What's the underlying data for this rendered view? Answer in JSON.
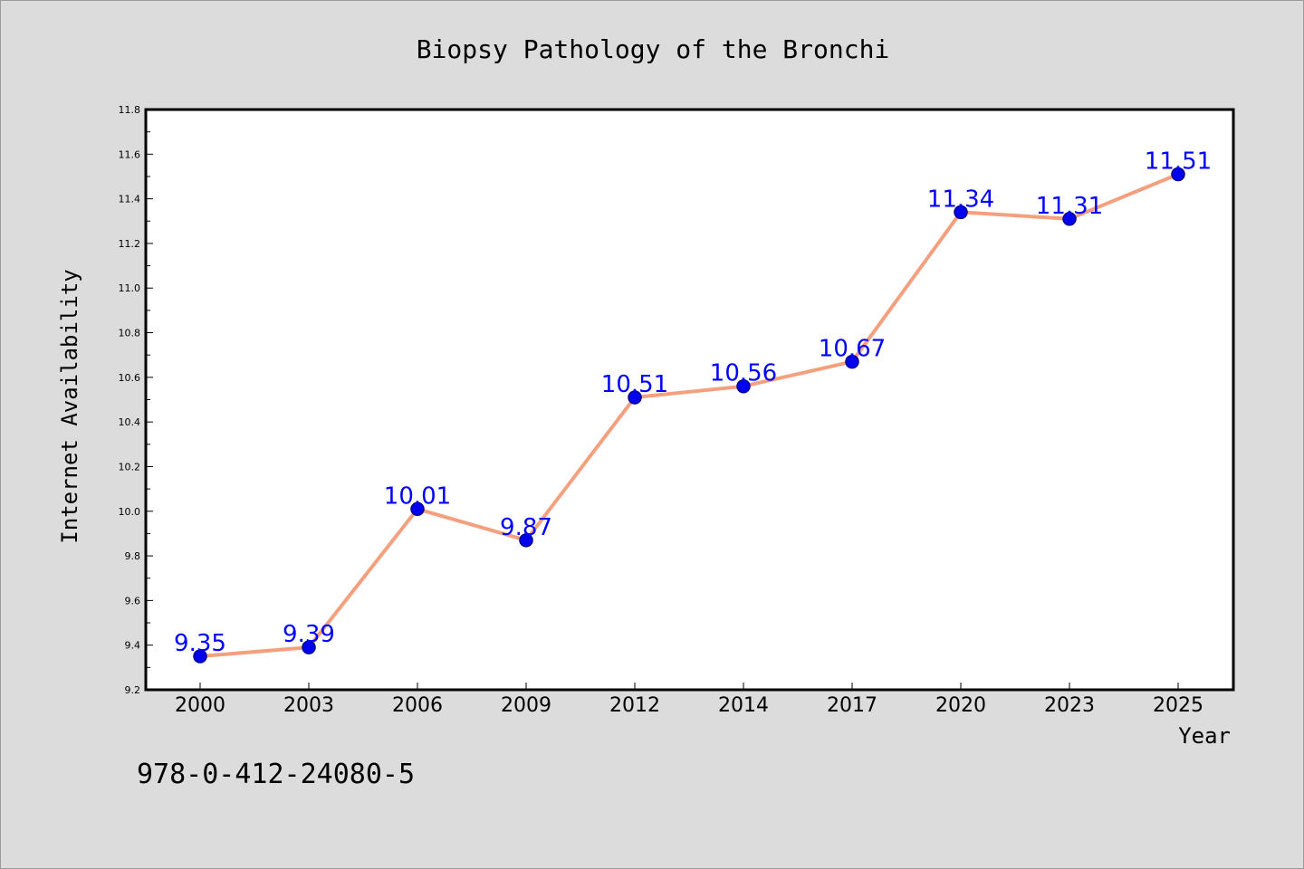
{
  "colors": {
    "background": "#dcdcdc",
    "plot_background": "#ffffff",
    "line": "#f4a07e",
    "marker": "#0000ee",
    "marker_edge": "#00008b",
    "data_label": "#0000ff"
  },
  "footer": {
    "isbn": "978-0-412-24080-5"
  },
  "chart_data": {
    "type": "line",
    "title": "Biopsy Pathology of the Bronchi",
    "xlabel": "Year",
    "ylabel": "Internet Availability",
    "categories": [
      "2000",
      "2003",
      "2006",
      "2009",
      "2012",
      "2014",
      "2017",
      "2020",
      "2023",
      "2025"
    ],
    "series": [
      {
        "values": [
          9.35,
          9.39,
          10.01,
          9.87,
          10.51,
          10.56,
          10.67,
          11.34,
          11.31,
          11.51
        ],
        "labels": [
          "9.35",
          "9.39",
          "10.01",
          "9.87",
          "10.51",
          "10.56",
          "10.67",
          "11.34",
          "11.31",
          "11.51"
        ]
      }
    ],
    "ylim": [
      9.2,
      11.8
    ],
    "yticks": [
      "9.2",
      "9.4",
      "9.6",
      "9.8",
      "10.0",
      "10.2",
      "10.4",
      "10.6",
      "10.8",
      "11.0",
      "11.2",
      "11.4",
      "11.6",
      "11.8"
    ],
    "grid": false,
    "legend": "none"
  }
}
